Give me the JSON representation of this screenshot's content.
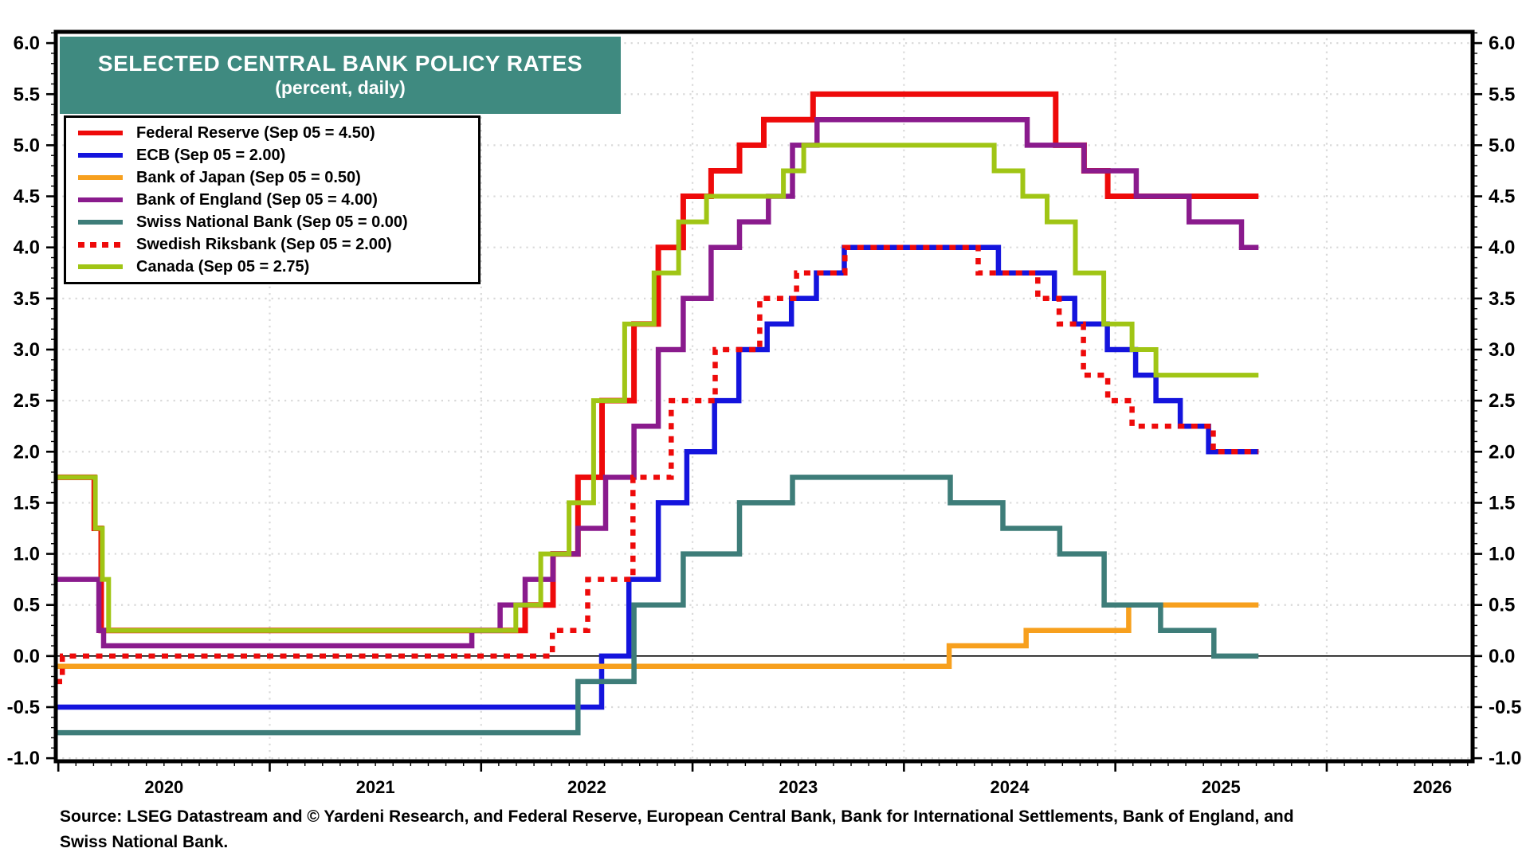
{
  "banner": {
    "title": "SELECTED CENTRAL BANK POLICY RATES",
    "subtitle": "(percent, daily)",
    "bg_color": "#3f8a80"
  },
  "legend": {
    "items": [
      {
        "label": "Federal Reserve (Sep 05 = 4.50)",
        "color": "#ee0a0a",
        "style": "solid"
      },
      {
        "label": "ECB (Sep 05 = 2.00)",
        "color": "#1414dd",
        "style": "solid"
      },
      {
        "label": "Bank of Japan (Sep 05 = 0.50)",
        "color": "#f7a01e",
        "style": "solid"
      },
      {
        "label": "Bank of England (Sep 05 = 4.00)",
        "color": "#8a1b8d",
        "style": "solid"
      },
      {
        "label": "Swiss National Bank (Sep 05 = 0.00)",
        "color": "#3e7d79",
        "style": "solid"
      },
      {
        "label": "Swedish Riksbank (Sep 05 = 2.00)",
        "color": "#ee0a0a",
        "style": "dotted"
      },
      {
        "label": "Canada (Sep 05 = 2.75)",
        "color": "#a0c515",
        "style": "solid"
      }
    ]
  },
  "source": {
    "line1": "Source: LSEG Datastream and © Yardeni Research, and Federal Reserve, European Central Bank, Bank for International Settlements, Bank of England, and",
    "line2": "Swiss National Bank."
  },
  "chart_data": {
    "type": "line",
    "step": true,
    "title": "SELECTED CENTRAL BANK POLICY RATES (percent, daily)",
    "x_domain": [
      2019.988,
      2026.69
    ],
    "y_domain": [
      -1.03,
      6.11
    ],
    "end_t": 2025.677,
    "grid_color": "#d9d9d9",
    "frame_color": "#000000",
    "zero_line": 0.0,
    "y_tick_labels": [
      "6.0",
      "5.5",
      "5.0",
      "4.5",
      "4.0",
      "3.5",
      "3.0",
      "2.5",
      "2.0",
      "1.5",
      "1.0",
      "0.5",
      "0.0",
      "-0.5",
      "-1.0"
    ],
    "y_tick_values": [
      6.0,
      5.5,
      5.0,
      4.5,
      4.0,
      3.5,
      3.0,
      2.5,
      2.0,
      1.5,
      1.0,
      0.5,
      0.0,
      -0.5,
      -1.0
    ],
    "y_minor_step": 0.1,
    "x_tick_labels": [
      "2020",
      "2021",
      "2022",
      "2023",
      "2024",
      "2025",
      "2026"
    ],
    "x_label_positions": [
      2020.5,
      2021.5,
      2022.5,
      2023.5,
      2024.5,
      2025.5,
      2026.5
    ],
    "x_gridline_years": [
      2021,
      2022,
      2023,
      2024,
      2025,
      2026
    ],
    "x_major_tick_years": [
      2020,
      2021,
      2022,
      2023,
      2024,
      2025,
      2026
    ],
    "series": [
      {
        "name": "Federal Reserve",
        "color": "#ee0a0a",
        "style": "solid",
        "width": 7,
        "points": [
          [
            2019.988,
            1.75
          ],
          [
            2020.17,
            1.25
          ],
          [
            2020.203,
            0.25
          ],
          [
            2022.208,
            0.5
          ],
          [
            2022.34,
            1.0
          ],
          [
            2022.458,
            1.75
          ],
          [
            2022.572,
            2.5
          ],
          [
            2022.723,
            3.25
          ],
          [
            2022.838,
            4.0
          ],
          [
            2022.956,
            4.5
          ],
          [
            2023.088,
            4.75
          ],
          [
            2023.222,
            5.0
          ],
          [
            2023.337,
            5.25
          ],
          [
            2023.57,
            5.5
          ],
          [
            2024.718,
            5.0
          ],
          [
            2024.852,
            4.75
          ],
          [
            2024.964,
            4.5
          ]
        ]
      },
      {
        "name": "ECB",
        "color": "#1414dd",
        "style": "solid",
        "width": 6.5,
        "points": [
          [
            2019.988,
            -0.5
          ],
          [
            2022.57,
            0.0
          ],
          [
            2022.699,
            0.75
          ],
          [
            2022.838,
            1.5
          ],
          [
            2022.973,
            2.0
          ],
          [
            2023.104,
            2.5
          ],
          [
            2023.219,
            3.0
          ],
          [
            2023.353,
            3.25
          ],
          [
            2023.468,
            3.5
          ],
          [
            2023.586,
            3.75
          ],
          [
            2023.718,
            4.0
          ],
          [
            2024.447,
            3.75
          ],
          [
            2024.712,
            3.5
          ],
          [
            2024.808,
            3.25
          ],
          [
            2024.962,
            3.0
          ],
          [
            2025.096,
            2.75
          ],
          [
            2025.192,
            2.5
          ],
          [
            2025.307,
            2.25
          ],
          [
            2025.441,
            2.0
          ]
        ]
      },
      {
        "name": "Bank of Japan",
        "color": "#f7a01e",
        "style": "solid",
        "width": 6.5,
        "points": [
          [
            2019.988,
            -0.1
          ],
          [
            2024.214,
            0.1
          ],
          [
            2024.578,
            0.25
          ],
          [
            2025.063,
            0.5
          ]
        ]
      },
      {
        "name": "Bank of England",
        "color": "#8a1b8d",
        "style": "solid",
        "width": 6.5,
        "points": [
          [
            2019.988,
            0.75
          ],
          [
            2020.192,
            0.25
          ],
          [
            2020.214,
            0.1
          ],
          [
            2021.956,
            0.25
          ],
          [
            2022.09,
            0.5
          ],
          [
            2022.208,
            0.75
          ],
          [
            2022.34,
            1.0
          ],
          [
            2022.458,
            1.25
          ],
          [
            2022.589,
            1.75
          ],
          [
            2022.723,
            2.25
          ],
          [
            2022.838,
            3.0
          ],
          [
            2022.956,
            3.5
          ],
          [
            2023.088,
            4.0
          ],
          [
            2023.222,
            4.25
          ],
          [
            2023.359,
            4.5
          ],
          [
            2023.473,
            5.0
          ],
          [
            2023.589,
            5.25
          ],
          [
            2024.583,
            5.0
          ],
          [
            2024.852,
            4.75
          ],
          [
            2025.099,
            4.5
          ],
          [
            2025.349,
            4.25
          ],
          [
            2025.597,
            4.0
          ]
        ]
      },
      {
        "name": "Swiss National Bank",
        "color": "#3e7d79",
        "style": "solid",
        "width": 6.5,
        "points": [
          [
            2019.988,
            -0.75
          ],
          [
            2022.458,
            -0.25
          ],
          [
            2022.723,
            0.5
          ],
          [
            2022.956,
            1.0
          ],
          [
            2023.222,
            1.5
          ],
          [
            2023.473,
            1.75
          ],
          [
            2024.219,
            1.5
          ],
          [
            2024.468,
            1.25
          ],
          [
            2024.737,
            1.0
          ],
          [
            2024.947,
            0.5
          ],
          [
            2025.214,
            0.25
          ],
          [
            2025.466,
            0.0
          ]
        ]
      },
      {
        "name": "Swedish Riksbank",
        "color": "#ee0a0a",
        "style": "dotted",
        "width": 6.5,
        "points": [
          [
            2019.988,
            -0.25
          ],
          [
            2020.019,
            0.0
          ],
          [
            2022.337,
            0.25
          ],
          [
            2022.504,
            0.75
          ],
          [
            2022.718,
            1.75
          ],
          [
            2022.899,
            2.5
          ],
          [
            2023.107,
            3.0
          ],
          [
            2023.318,
            3.5
          ],
          [
            2023.492,
            3.75
          ],
          [
            2023.721,
            4.0
          ],
          [
            2024.351,
            3.75
          ],
          [
            2024.633,
            3.5
          ],
          [
            2024.734,
            3.25
          ],
          [
            2024.849,
            2.75
          ],
          [
            2024.964,
            2.5
          ],
          [
            2025.079,
            2.25
          ],
          [
            2025.463,
            2.0
          ]
        ]
      },
      {
        "name": "Canada",
        "color": "#a0c515",
        "style": "solid",
        "width": 6,
        "points": [
          [
            2019.988,
            1.75
          ],
          [
            2020.175,
            1.25
          ],
          [
            2020.208,
            0.75
          ],
          [
            2020.238,
            0.25
          ],
          [
            2022.164,
            0.5
          ],
          [
            2022.282,
            1.0
          ],
          [
            2022.416,
            1.5
          ],
          [
            2022.532,
            2.5
          ],
          [
            2022.679,
            3.25
          ],
          [
            2022.818,
            3.75
          ],
          [
            2022.934,
            4.25
          ],
          [
            2023.066,
            4.5
          ],
          [
            2023.43,
            4.75
          ],
          [
            2023.526,
            5.0
          ],
          [
            2024.427,
            4.75
          ],
          [
            2024.562,
            4.5
          ],
          [
            2024.677,
            4.25
          ],
          [
            2024.811,
            3.75
          ],
          [
            2024.945,
            3.25
          ],
          [
            2025.079,
            3.0
          ],
          [
            2025.192,
            2.75
          ]
        ]
      }
    ]
  }
}
